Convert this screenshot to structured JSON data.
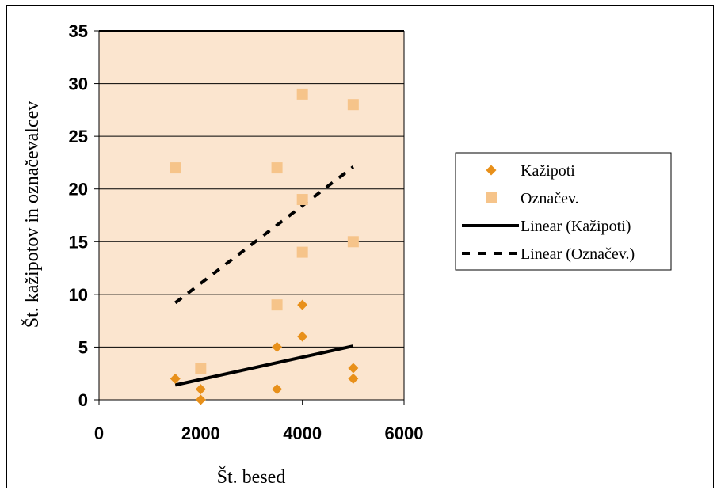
{
  "chart_data": {
    "type": "scatter",
    "xlabel": "Št. besed",
    "ylabel": "Št. kažipotov in označevalcev",
    "xlim": [
      0,
      6000
    ],
    "ylim": [
      0,
      35
    ],
    "x_ticks": [
      "0",
      "2000",
      "4000",
      "6000"
    ],
    "y_ticks": [
      "0",
      "5",
      "10",
      "15",
      "20",
      "25",
      "30",
      "35"
    ],
    "grid": "horizontal",
    "legend_position": "right",
    "plot_background": "#fbe5cf",
    "series": [
      {
        "name": "Kažipoti",
        "marker": "diamond",
        "color": "#e8901a",
        "points": [
          [
            1500,
            2
          ],
          [
            2000,
            1
          ],
          [
            2000,
            0
          ],
          [
            3500,
            5
          ],
          [
            3500,
            1
          ],
          [
            4000,
            9
          ],
          [
            4000,
            6
          ],
          [
            5000,
            3
          ],
          [
            5000,
            2
          ]
        ]
      },
      {
        "name": "Označev.",
        "marker": "square",
        "color": "#f6c48a",
        "points": [
          [
            1500,
            22
          ],
          [
            2000,
            3
          ],
          [
            3500,
            22
          ],
          [
            3500,
            9
          ],
          [
            4000,
            29
          ],
          [
            4000,
            19
          ],
          [
            4000,
            14
          ],
          [
            5000,
            28
          ],
          [
            5000,
            15
          ]
        ]
      }
    ],
    "trendlines": [
      {
        "name": "Linear (Kažipoti)",
        "style": "solid",
        "color": "#000000",
        "from": [
          1500,
          1.4
        ],
        "to": [
          5000,
          5.1
        ]
      },
      {
        "name": "Linear (Označev.)",
        "style": "dashed",
        "color": "#000000",
        "from": [
          1500,
          9.2
        ],
        "to": [
          5000,
          22.1
        ]
      }
    ]
  }
}
